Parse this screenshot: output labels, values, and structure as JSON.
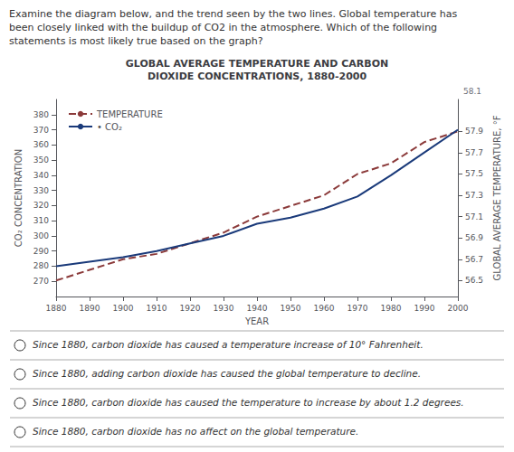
{
  "chart_data": {
    "type": "line",
    "title": "GLOBAL AVERAGE TEMPERATURE AND CARBON\nDIOXIDE CONCENTRATIONS, 1880-2000",
    "question_text": "Examine the diagram below, and the trend seen by the two lines. Global temperature has\nbeen closely linked with the buildup of CO2 in the atmosphere. Which of the following\nstatements is most likely true based on the graph?",
    "answer_options": [
      "Since 1880, carbon dioxide has caused a temperature increase of 10° Fahrenheit.",
      "Since 1880, adding carbon dioxide has caused the global temperature to decline.",
      "Since 1880, carbon dioxide has caused the temperature to increase by about 1.2 degrees.",
      "Since 1880, carbon dioxide has no affect on the global temperature."
    ],
    "annotations": [
      "58.1"
    ],
    "xlabel": "YEAR",
    "ylabel": "CO₂ CONCENTRATION",
    "y2label": "GLOBAL AVERAGE TEMPERATURE, °F",
    "x": [
      1880,
      1890,
      1900,
      1910,
      1920,
      1930,
      1940,
      1950,
      1960,
      1970,
      1980,
      1990,
      2000
    ],
    "series": [
      {
        "name": "TEMPERATURE",
        "color": "#8B3A3A",
        "line_style": "dashed",
        "axis": "y2",
        "values": [
          56.5,
          56.6,
          56.7,
          56.75,
          56.85,
          56.95,
          57.1,
          57.2,
          57.3,
          57.5,
          57.6,
          57.8,
          57.9
        ]
      },
      {
        "name": "• CO₂",
        "color": "#1a3a7a",
        "line_style": "solid",
        "values": [
          280,
          283,
          286,
          290,
          295,
          300,
          308,
          312,
          318,
          326,
          340,
          355,
          370
        ]
      }
    ],
    "xlim": [
      1880,
      2000
    ],
    "xticks": [
      1880,
      1890,
      1900,
      1910,
      1920,
      1930,
      1940,
      1950,
      1960,
      1970,
      1980,
      1990,
      2000
    ],
    "ylim": [
      260,
      390
    ],
    "yticks": [
      270,
      280,
      290,
      300,
      310,
      320,
      330,
      340,
      350,
      360,
      370,
      380
    ],
    "y2lim": [
      56.35,
      58.2
    ],
    "y2ticks": [
      56.5,
      56.7,
      56.9,
      57.1,
      57.3,
      57.5,
      57.7,
      57.9
    ],
    "grid": false,
    "legend": "upper left"
  }
}
